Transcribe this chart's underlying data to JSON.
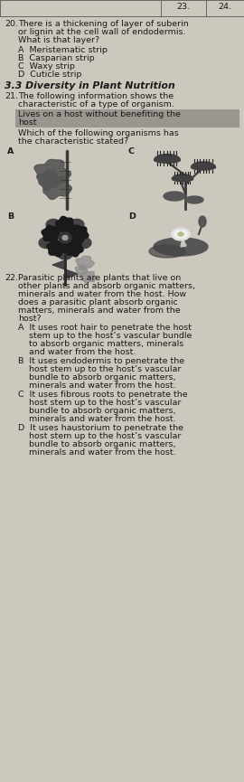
{
  "bg_color": "#cdc8be",
  "text_color": "#1a1a1a",
  "header_col1": "23.",
  "header_col2": "24.",
  "q20_num": "20.",
  "q20_line1": "There is a thickening of layer of suberin",
  "q20_line2": "or lignin at the cell wall of endodermis.",
  "q20_line3": "What is that layer?",
  "q20_opts": [
    "A  Meristematic strip",
    "B  Casparian strip",
    "C  Waxy strip",
    "D  Cuticle strip"
  ],
  "sec_title": "3.3 Diversity in Plant Nutrition",
  "q21_num": "21.",
  "q21_line1": "The following information shows the",
  "q21_line2": "characteristic of a type of organism.",
  "q21_hl1": "Lives on a host without benefiting the",
  "q21_hl2": "host",
  "q21_q1": "Which of the following organisms has",
  "q21_q2": "the characteristic stated?",
  "q22_num": "22.",
  "q22_lines": [
    "Parasitic plants are plants that live on",
    "other plants and absorb organic matters,",
    "minerals and water from the host. How",
    "does a parasitic plant absorb organic",
    "matters, minerals and water from the",
    "host?"
  ],
  "q22_opts": [
    [
      "A  It uses root hair to penetrate the host",
      "    stem up to the host’s vascular bundle",
      "    to absorb organic matters, minerals",
      "    and water from the host."
    ],
    [
      "B  It uses endodermis to penetrate the",
      "    host stem up to the host’s vascular",
      "    bundle to absorb organic matters,",
      "    minerals and water from the host."
    ],
    [
      "C  It uses fibrous roots to penetrate the",
      "    host stem up to the host’s vascular",
      "    bundle to absorb organic matters,",
      "    minerals and water from the host."
    ],
    [
      "D  It uses haustorium to penetrate the",
      "    host stem up to the host’s vascular",
      "    bundle to absorb organic matters,",
      "    minerals and water from the host."
    ]
  ],
  "highlight_color": "#9a9690",
  "line_color": "#666666",
  "fs": 6.8,
  "fs_sec": 7.8,
  "lh": 9.0
}
